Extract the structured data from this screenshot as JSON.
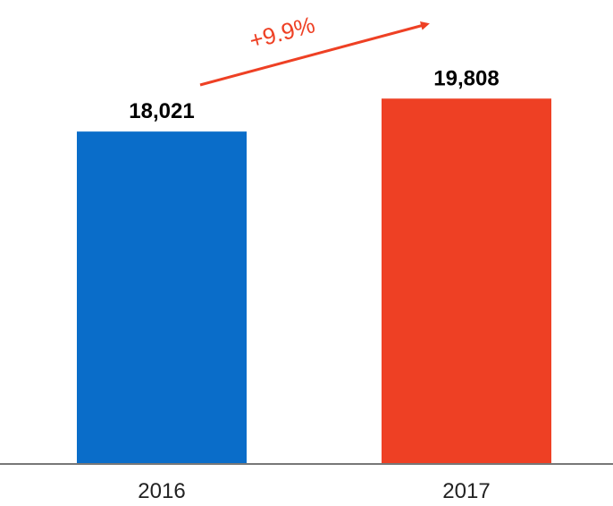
{
  "chart_data": {
    "type": "bar",
    "categories": [
      "2016",
      "2017"
    ],
    "values": [
      18021,
      19808
    ],
    "value_labels": [
      "18,021",
      "19,808"
    ],
    "bar_colors": [
      "#0A6DC9",
      "#EE4024"
    ],
    "ylim": [
      0,
      20500
    ],
    "grid": false,
    "legend": "none",
    "annotation": {
      "text": "+9.9%",
      "color": "#EE4024",
      "type": "arrow"
    },
    "axis_color": "#777777"
  }
}
